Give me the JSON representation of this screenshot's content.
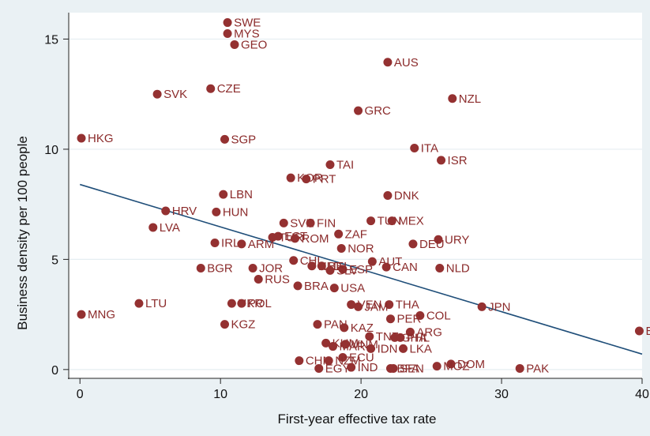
{
  "chart_data": {
    "type": "scatter",
    "title": "",
    "xlabel": "First-year effective tax rate",
    "ylabel": "Business density per 100 people",
    "xlim": [
      -0.8,
      40
    ],
    "ylim": [
      -0.4,
      16.2
    ],
    "xticks": [
      0,
      10,
      20,
      30,
      40
    ],
    "yticks": [
      0,
      5,
      10,
      15
    ],
    "grid": "horizontal",
    "colors": {
      "marker": "#943131",
      "label": "#8b2b2b",
      "fit_line": "#1f4e79",
      "plot_bg": "#ffffff",
      "outer_bg": "#eaf1f4",
      "grid": "#e6eef2"
    },
    "fit_line": {
      "x": [
        0,
        40
      ],
      "y": [
        8.4,
        0.7
      ]
    },
    "points": [
      {
        "label": "SWE",
        "x": 10.5,
        "y": 15.75
      },
      {
        "label": "MYS",
        "x": 10.5,
        "y": 15.25
      },
      {
        "label": "GEO",
        "x": 11.0,
        "y": 14.75
      },
      {
        "label": "AUS",
        "x": 21.9,
        "y": 13.95
      },
      {
        "label": "CZE",
        "x": 9.3,
        "y": 12.75
      },
      {
        "label": "SVK",
        "x": 5.5,
        "y": 12.5
      },
      {
        "label": "NZL",
        "x": 26.5,
        "y": 12.3
      },
      {
        "label": "GRC",
        "x": 19.8,
        "y": 11.75
      },
      {
        "label": "HKG",
        "x": 0.1,
        "y": 10.5
      },
      {
        "label": "SGP",
        "x": 10.3,
        "y": 10.45
      },
      {
        "label": "ITA",
        "x": 23.8,
        "y": 10.05
      },
      {
        "label": "ISR",
        "x": 25.7,
        "y": 9.5
      },
      {
        "label": "TAI",
        "x": 17.8,
        "y": 9.3
      },
      {
        "label": "KOR",
        "x": 15.0,
        "y": 8.7
      },
      {
        "label": "PRT",
        "x": 16.1,
        "y": 8.65
      },
      {
        "label": "LBN",
        "x": 10.2,
        "y": 7.95
      },
      {
        "label": "DNK",
        "x": 21.9,
        "y": 7.9
      },
      {
        "label": "HRV",
        "x": 6.1,
        "y": 7.2
      },
      {
        "label": "HUN",
        "x": 9.7,
        "y": 7.15
      },
      {
        "label": "TUN",
        "x": 20.7,
        "y": 6.75
      },
      {
        "label": "MEX",
        "x": 22.2,
        "y": 6.75
      },
      {
        "label": "SVN",
        "x": 14.5,
        "y": 6.65
      },
      {
        "label": "FIN",
        "x": 16.4,
        "y": 6.65
      },
      {
        "label": "LVA",
        "x": 5.2,
        "y": 6.45
      },
      {
        "label": "ZAF",
        "x": 18.4,
        "y": 6.15
      },
      {
        "label": "EST",
        "x": 14.1,
        "y": 6.05
      },
      {
        "label": "TUR",
        "x": 13.7,
        "y": 6.0
      },
      {
        "label": "ROM",
        "x": 15.3,
        "y": 5.95
      },
      {
        "label": "URY",
        "x": 25.5,
        "y": 5.9
      },
      {
        "label": "IRL",
        "x": 9.6,
        "y": 5.75
      },
      {
        "label": "ARM",
        "x": 11.5,
        "y": 5.7
      },
      {
        "label": "DEU",
        "x": 23.7,
        "y": 5.7
      },
      {
        "label": "NOR",
        "x": 18.6,
        "y": 5.5
      },
      {
        "label": "CHL",
        "x": 15.2,
        "y": 4.95
      },
      {
        "label": "AUT",
        "x": 20.8,
        "y": 4.9
      },
      {
        "label": "NLD",
        "x": 16.5,
        "y": 4.7
      },
      {
        "label": "BEL",
        "x": 17.2,
        "y": 4.7
      },
      {
        "label": "CAN",
        "x": 21.8,
        "y": 4.65
      },
      {
        "label": "NLD",
        "x": 25.6,
        "y": 4.6
      },
      {
        "label": "BGR",
        "x": 8.6,
        "y": 4.6
      },
      {
        "label": "JOR",
        "x": 12.3,
        "y": 4.6
      },
      {
        "label": "ESP",
        "x": 18.7,
        "y": 4.55
      },
      {
        "label": "SLV",
        "x": 17.8,
        "y": 4.5
      },
      {
        "label": "RUS",
        "x": 12.7,
        "y": 4.1
      },
      {
        "label": "BRA",
        "x": 15.5,
        "y": 3.8
      },
      {
        "label": "USA",
        "x": 18.1,
        "y": 3.7
      },
      {
        "label": "LTU",
        "x": 4.2,
        "y": 3.0
      },
      {
        "label": "UKR",
        "x": 10.8,
        "y": 3.0
      },
      {
        "label": "POL",
        "x": 11.5,
        "y": 3.0
      },
      {
        "label": "VEN",
        "x": 19.3,
        "y": 2.95
      },
      {
        "label": "THA",
        "x": 22.0,
        "y": 2.95
      },
      {
        "label": "JAM",
        "x": 19.8,
        "y": 2.85
      },
      {
        "label": "JPN",
        "x": 28.6,
        "y": 2.85
      },
      {
        "label": "MNG",
        "x": 0.1,
        "y": 2.5
      },
      {
        "label": "COL",
        "x": 24.2,
        "y": 2.45
      },
      {
        "label": "PER",
        "x": 22.1,
        "y": 2.3
      },
      {
        "label": "KGZ",
        "x": 10.3,
        "y": 2.05
      },
      {
        "label": "PAN",
        "x": 16.9,
        "y": 2.05
      },
      {
        "label": "KAZ",
        "x": 18.8,
        "y": 1.9
      },
      {
        "label": "ARG",
        "x": 23.5,
        "y": 1.7
      },
      {
        "label": "TNZ",
        "x": 20.6,
        "y": 1.5
      },
      {
        "label": "GHA",
        "x": 22.4,
        "y": 1.45
      },
      {
        "label": "PHL",
        "x": 22.8,
        "y": 1.45
      },
      {
        "label": "KHM",
        "x": 17.5,
        "y": 1.2
      },
      {
        "label": "MAR",
        "x": 18.0,
        "y": 1.05
      },
      {
        "label": "VNM",
        "x": 18.9,
        "y": 1.15
      },
      {
        "label": "IDN",
        "x": 20.7,
        "y": 0.95
      },
      {
        "label": "LKA",
        "x": 23.0,
        "y": 0.95
      },
      {
        "label": "ECU",
        "x": 18.7,
        "y": 0.55
      },
      {
        "label": "CHN",
        "x": 15.6,
        "y": 0.4
      },
      {
        "label": "NZM",
        "x": 17.7,
        "y": 0.4
      },
      {
        "label": "DOM",
        "x": 26.4,
        "y": 0.25
      },
      {
        "label": "MOZ",
        "x": 25.4,
        "y": 0.15
      },
      {
        "label": "EGY",
        "x": 17.0,
        "y": 0.05
      },
      {
        "label": "IND",
        "x": 19.3,
        "y": 0.1
      },
      {
        "label": "BFA",
        "x": 22.1,
        "y": 0.05
      },
      {
        "label": "SEN",
        "x": 22.3,
        "y": 0.05
      },
      {
        "label": "PAK",
        "x": 31.3,
        "y": 0.05
      },
      {
        "label": "BOL",
        "x": 39.8,
        "y": 1.75
      }
    ]
  }
}
